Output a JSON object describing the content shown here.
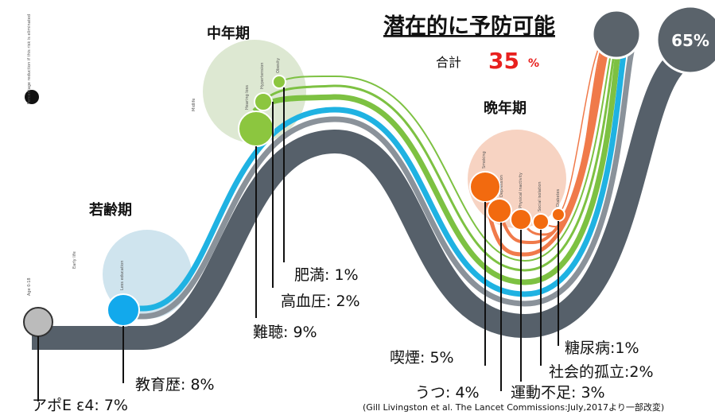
{
  "title": "潜在的に予防可能",
  "total": {
    "label": "合計",
    "value": "35",
    "unit": "%"
  },
  "remaining": "65%",
  "stages": {
    "early": "若齢期",
    "mid": "中年期",
    "late": "晩年期"
  },
  "small_labels": {
    "legend": "Percentage reduction if this risk is eliminated",
    "age": "Age 0-18",
    "early_life": "Early life",
    "midlife": "Midlife",
    "less_education": "Less education",
    "hearing_loss": "Hearing loss",
    "hypertension": "Hypertension",
    "obesity": "Obesity",
    "smoking": "Smoking",
    "depression": "Depression",
    "physical_inactivity": "Physical inactivity",
    "social_isolation": "Social isolation",
    "diabetes": "Diabetes"
  },
  "factors": [
    "アポE ε4: 7%",
    "教育歴: 8%",
    "難聴: 9%",
    "高血圧: 2%",
    "肥満: 1%",
    "喫煙: 5%",
    "うつ: 4%",
    "運動不足: 3%",
    "社会的孤立:2%",
    "糖尿病:1%"
  ],
  "citation": "(Gill Livingston et al. The Lancet Commissions:July,2017より一部改変)"
}
